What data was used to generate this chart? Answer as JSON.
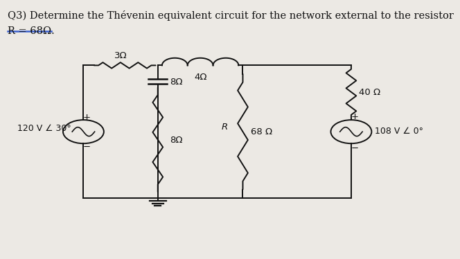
{
  "title_line1": "Q3) Determine the Thévenin equivalent circuit for the network external to the resistor",
  "title_line2": "R = 68Ω.",
  "bg_color": "#ece9e4",
  "text_color": "#111111",
  "title_fontsize": 10.5,
  "label_fontsize": 9.5,
  "underline_color": "#3a5fcd",
  "components": {
    "R_left": "3Ω",
    "C_mid": "8Ω",
    "L_top": "4Ω",
    "R_middle": "68 Ω",
    "R_right_top": "40 Ω",
    "R_bottom": "8Ω",
    "V_left": "120 V ∠ 30°",
    "V_right": "108 V ∠ 0°",
    "R_load": "R"
  }
}
